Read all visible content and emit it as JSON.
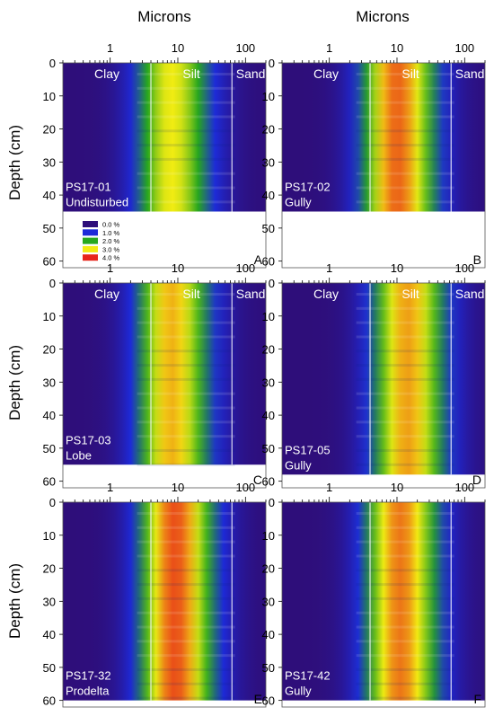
{
  "x_axis_title": "Microns",
  "y_axis_title": "Depth (cm)",
  "legend": {
    "entries": [
      {
        "label": "0.0 %",
        "color": "#2e0e7a"
      },
      {
        "label": "1.0 %",
        "color": "#1d2ad8"
      },
      {
        "label": "2.0 %",
        "color": "#27a81d"
      },
      {
        "label": "3.0 %",
        "color": "#f2ec12"
      },
      {
        "label": "4.0 %",
        "color": "#e8251a"
      }
    ]
  },
  "chart_data": [
    {
      "type": "heatmap",
      "panel": "A",
      "core": "PS17-01",
      "setting": "Undisturbed",
      "xlabel": "Microns",
      "ylabel": "Depth (cm)",
      "x_scale": "log",
      "x_ticks": [
        "1",
        "10",
        "100"
      ],
      "y_ticks": [
        "0",
        "10",
        "20",
        "30",
        "40",
        "50",
        "60"
      ],
      "ylim": [
        0,
        62
      ],
      "core_length_cm": 45,
      "grain_size_boundaries_um": [
        4,
        63
      ],
      "size_classes": [
        "Clay",
        "Silt",
        "Sand"
      ],
      "value_unit": "%",
      "peak_um": 8,
      "peak_percent": 3.0
    },
    {
      "type": "heatmap",
      "panel": "B",
      "core": "PS17-02",
      "setting": "Gully",
      "xlabel": "Microns",
      "ylabel": "Depth (cm)",
      "x_scale": "log",
      "x_ticks": [
        "1",
        "10",
        "100"
      ],
      "y_ticks": [
        "0",
        "10",
        "20",
        "30",
        "40",
        "50",
        "60"
      ],
      "ylim": [
        0,
        62
      ],
      "core_length_cm": 45,
      "grain_size_boundaries_um": [
        4,
        63
      ],
      "size_classes": [
        "Clay",
        "Silt",
        "Sand"
      ],
      "value_unit": "%",
      "peak_um": 10,
      "peak_percent": 3.7
    },
    {
      "type": "heatmap",
      "panel": "C",
      "core": "PS17-03",
      "setting": "Lobe",
      "xlabel": "Microns",
      "ylabel": "Depth (cm)",
      "x_scale": "log",
      "x_ticks": [
        "1",
        "10",
        "100"
      ],
      "y_ticks": [
        "0",
        "10",
        "20",
        "30",
        "40",
        "50",
        "60"
      ],
      "ylim": [
        0,
        62
      ],
      "core_length_cm": 55,
      "grain_size_boundaries_um": [
        4,
        63
      ],
      "size_classes": [
        "Clay",
        "Silt",
        "Sand"
      ],
      "value_unit": "%",
      "peak_um": 8,
      "peak_percent": 3.3
    },
    {
      "type": "heatmap",
      "panel": "D",
      "core": "PS17-05",
      "setting": "Gully",
      "xlabel": "Microns",
      "ylabel": "Depth (cm)",
      "x_scale": "log",
      "x_ticks": [
        "1",
        "10",
        "100"
      ],
      "y_ticks": [
        "0",
        "10",
        "20",
        "30",
        "40",
        "50",
        "60"
      ],
      "ylim": [
        0,
        62
      ],
      "core_length_cm": 58,
      "grain_size_boundaries_um": [
        4,
        63
      ],
      "size_classes": [
        "Clay",
        "Silt",
        "Sand"
      ],
      "value_unit": "%",
      "peak_um": 14,
      "peak_percent": 3.4
    },
    {
      "type": "heatmap",
      "panel": "E",
      "core": "PS17-32",
      "setting": "Prodelta",
      "xlabel": "Microns",
      "ylabel": "Depth (cm)",
      "x_scale": "log",
      "x_ticks": [
        "1",
        "10",
        "100"
      ],
      "y_ticks": [
        "0",
        "10",
        "20",
        "30",
        "40",
        "50",
        "60"
      ],
      "ylim": [
        0,
        62
      ],
      "core_length_cm": 60,
      "grain_size_boundaries_um": [
        4,
        63
      ],
      "size_classes": [],
      "value_unit": "%",
      "peak_um": 9,
      "peak_percent": 3.8
    },
    {
      "type": "heatmap",
      "panel": "F",
      "core": "PS17-42",
      "setting": "Gully",
      "xlabel": "Microns",
      "ylabel": "Depth (cm)",
      "x_scale": "log",
      "x_ticks": [
        "1",
        "10",
        "100"
      ],
      "y_ticks": [
        "0",
        "10",
        "20",
        "30",
        "40",
        "50",
        "60"
      ],
      "ylim": [
        0,
        62
      ],
      "core_length_cm": 60,
      "grain_size_boundaries_um": [
        4,
        63
      ],
      "size_classes": [],
      "value_unit": "%",
      "peak_um": 11,
      "peak_percent": 3.6
    }
  ]
}
